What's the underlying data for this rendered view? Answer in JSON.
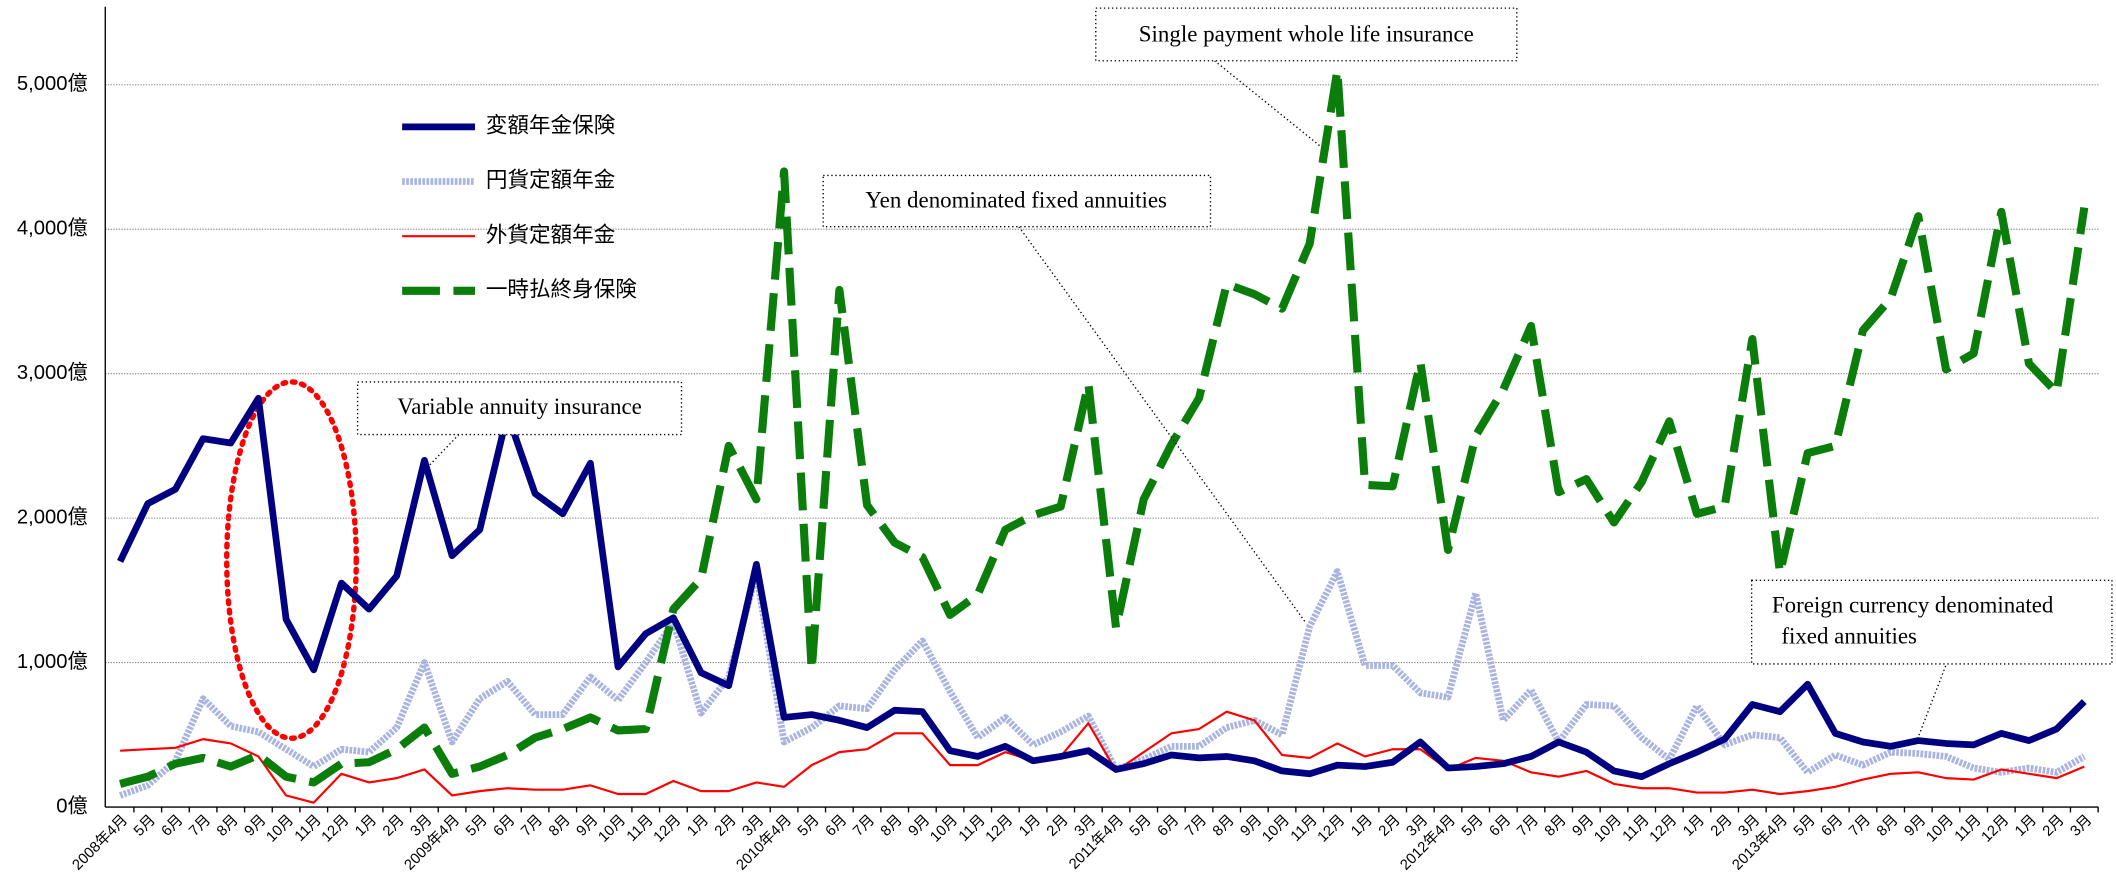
{
  "chart_data": {
    "type": "line",
    "categories": [
      "2008年4月",
      "5月",
      "6月",
      "7月",
      "8月",
      "9月",
      "10月",
      "11月",
      "12月",
      "1月",
      "2月",
      "3月",
      "2009年4月",
      "5月",
      "6月",
      "7月",
      "8月",
      "9月",
      "10月",
      "11月",
      "12月",
      "1月",
      "2月",
      "3月",
      "2010年4月",
      "5月",
      "6月",
      "7月",
      "8月",
      "9月",
      "10月",
      "11月",
      "12月",
      "1月",
      "2月",
      "3月",
      "2011年4月",
      "5月",
      "6月",
      "7月",
      "8月",
      "9月",
      "10月",
      "11月",
      "12月",
      "1月",
      "2月",
      "3月",
      "2012年4月",
      "5月",
      "6月",
      "7月",
      "8月",
      "9月",
      "10月",
      "11月",
      "12月",
      "1月",
      "2月",
      "3月",
      "2013年4月",
      "5月",
      "6月",
      "7月",
      "8月",
      "9月",
      "10月",
      "11月",
      "12月",
      "1月",
      "2月",
      "3月"
    ],
    "series": [
      {
        "name": "円貨定額年金",
        "color": "#a9b4e0",
        "values": [
          80,
          150,
          320,
          750,
          560,
          520,
          400,
          280,
          400,
          380,
          550,
          1000,
          450,
          750,
          870,
          640,
          640,
          900,
          740,
          1000,
          1280,
          650,
          900,
          1620,
          450,
          550,
          700,
          680,
          950,
          1150,
          800,
          480,
          620,
          430,
          520,
          630,
          260,
          330,
          420,
          420,
          550,
          600,
          500,
          1250,
          1630,
          980,
          980,
          790,
          760,
          1480,
          600,
          810,
          450,
          710,
          700,
          480,
          330,
          700,
          430,
          500,
          480,
          240,
          360,
          290,
          380,
          370,
          350,
          270,
          240,
          270,
          240,
          350
        ]
      },
      {
        "name": "外貨定額年金",
        "color": "#ff0000",
        "values": [
          390,
          400,
          410,
          470,
          440,
          350,
          80,
          30,
          230,
          170,
          200,
          260,
          80,
          110,
          130,
          120,
          120,
          150,
          90,
          90,
          180,
          110,
          110,
          170,
          140,
          290,
          380,
          400,
          510,
          510,
          290,
          290,
          380,
          320,
          350,
          580,
          250,
          380,
          510,
          540,
          660,
          600,
          360,
          340,
          440,
          350,
          400,
          400,
          260,
          340,
          320,
          240,
          210,
          250,
          160,
          130,
          130,
          100,
          100,
          120,
          90,
          110,
          140,
          190,
          230,
          240,
          200,
          190,
          260,
          230,
          200,
          280
        ]
      },
      {
        "name": "変額年金保険",
        "color": "#000080",
        "values": [
          1700,
          2100,
          2200,
          2550,
          2520,
          2830,
          1300,
          950,
          1550,
          1370,
          1600,
          2400,
          1740,
          1920,
          2720,
          2170,
          2030,
          2380,
          970,
          1200,
          1310,
          930,
          840,
          1680,
          620,
          640,
          600,
          550,
          670,
          660,
          390,
          350,
          420,
          320,
          350,
          390,
          260,
          300,
          360,
          340,
          350,
          320,
          250,
          230,
          290,
          280,
          310,
          450,
          270,
          280,
          300,
          350,
          450,
          380,
          250,
          210,
          300,
          380,
          470,
          710,
          660,
          850,
          510,
          450,
          420,
          460,
          440,
          430,
          510,
          460,
          540,
          730
        ]
      },
      {
        "name": "一時払終身保険",
        "color": "#0a7d0a",
        "values": [
          160,
          210,
          300,
          340,
          280,
          360,
          210,
          170,
          300,
          310,
          400,
          550,
          230,
          280,
          360,
          480,
          540,
          620,
          530,
          540,
          1370,
          1580,
          2500,
          2130,
          4400,
          950,
          3580,
          2090,
          1830,
          1730,
          1330,
          1470,
          1920,
          2020,
          2080,
          2930,
          1240,
          2130,
          2510,
          2830,
          3620,
          3550,
          3450,
          3900,
          5100,
          2230,
          2220,
          3080,
          1780,
          2570,
          2890,
          3330,
          2180,
          2270,
          1970,
          2250,
          2670,
          2030,
          2080,
          3240,
          1620,
          2450,
          2500,
          3300,
          3520,
          4090,
          3030,
          3140,
          4120,
          3070,
          2870,
          4150
        ]
      }
    ],
    "ylim": [
      0,
      5540
    ],
    "yticks": [
      {
        "value": 0,
        "label": "0億"
      },
      {
        "value": 1000,
        "label": "1,000億"
      },
      {
        "value": 2000,
        "label": "2,000億"
      },
      {
        "value": 3000,
        "label": "3,000億"
      },
      {
        "value": 4000,
        "label": "4,000億"
      },
      {
        "value": 5000,
        "label": "5,000億"
      }
    ],
    "grid": true,
    "legend": "upper left",
    "annotations": [
      {
        "text": [
          "Single payment whole life insurance"
        ]
      },
      {
        "text": [
          "Yen denominated fixed annuities"
        ]
      },
      {
        "text": [
          "Variable annuity insurance"
        ]
      },
      {
        "text": [
          "Foreign currency denominated",
          "fixed annuities"
        ]
      }
    ]
  }
}
